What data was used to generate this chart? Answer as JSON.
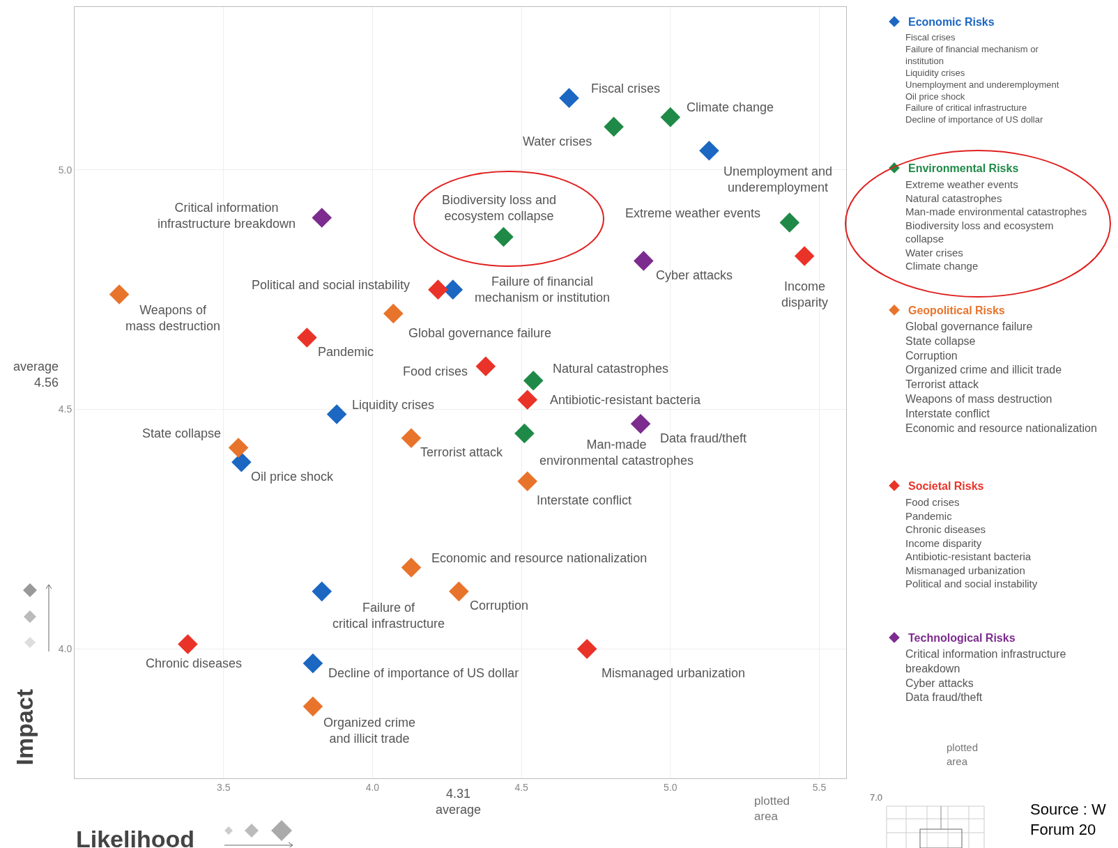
{
  "chart_data": {
    "type": "scatter",
    "xlabel": "Likelihood",
    "ylabel": "Impact",
    "xlim": [
      3.0,
      5.59
    ],
    "ylim": [
      3.73,
      5.34
    ],
    "xticks": [
      3.5,
      {
        "value": 4,
        "label": "4.0"
      },
      4.5,
      {
        "value": 5,
        "label": "5.0"
      },
      5.5
    ],
    "yticks": [
      {
        "value": 4,
        "label": "4.0"
      },
      4.5,
      {
        "value": 5,
        "label": "5.0"
      }
    ],
    "grid": true,
    "marker": "diamond",
    "legend": "right",
    "series": [
      {
        "name": "Economic Risks",
        "color": "#1b67c2",
        "x": [
          4.66,
          5.13,
          4.27,
          3.88,
          3.56,
          3.83,
          3.8
        ],
        "values": [
          5.15,
          5.04,
          4.75,
          4.49,
          4.39,
          4.12,
          3.97
        ]
      },
      {
        "name": "Environmental Risks",
        "color": "#1f8a47",
        "x": [
          5.0,
          4.81,
          5.4,
          4.44,
          4.54,
          4.51
        ],
        "values": [
          5.11,
          5.09,
          4.89,
          4.86,
          4.56,
          4.45
        ]
      },
      {
        "name": "Geopolitical Risks",
        "color": "#e8742c",
        "x": [
          3.15,
          4.07,
          4.13,
          3.55,
          4.52,
          4.13,
          4.29,
          3.8
        ],
        "values": [
          4.74,
          4.7,
          4.44,
          4.42,
          4.35,
          4.17,
          4.12,
          3.88
        ]
      },
      {
        "name": "Societal Risks",
        "color": "#ea3328",
        "x": [
          5.45,
          4.22,
          3.78,
          4.38,
          4.52,
          3.38,
          4.72
        ],
        "values": [
          4.82,
          4.75,
          4.65,
          4.59,
          4.52,
          4.01,
          4.0
        ]
      },
      {
        "name": "Technological Risks",
        "color": "#7c2b8e",
        "x": [
          3.83,
          4.91,
          4.9
        ],
        "values": [
          4.9,
          4.81,
          4.47
        ]
      }
    ],
    "annotations": [
      {
        "text": "Fiscal crises",
        "x": 4.66,
        "y": 5.15
      },
      {
        "text": "Climate change",
        "x": 5.0,
        "y": 5.11
      },
      {
        "text": "Water crises",
        "x": 4.81,
        "y": 5.09
      },
      {
        "text": "Unemployment and\nunderemployment",
        "x": 5.13,
        "y": 5.04
      },
      {
        "text": "Critical information\ninfrastructure breakdown",
        "x": 3.83,
        "y": 4.9
      },
      {
        "text": "Biodiversity loss and\necosystem collapse",
        "x": 4.44,
        "y": 4.86
      },
      {
        "text": "Extreme weather events",
        "x": 5.4,
        "y": 4.89
      },
      {
        "text": "Cyber attacks",
        "x": 4.91,
        "y": 4.81
      },
      {
        "text": "Income\ndisparity",
        "x": 5.45,
        "y": 4.82
      },
      {
        "text": "Political and social instability",
        "x": 4.22,
        "y": 4.75
      },
      {
        "text": "Failure of financial\nmechanism or institution",
        "x": 4.27,
        "y": 4.75
      },
      {
        "text": "Weapons of\nmass destruction",
        "x": 3.15,
        "y": 4.74
      },
      {
        "text": "Global governance failure",
        "x": 4.07,
        "y": 4.7
      },
      {
        "text": "Pandemic",
        "x": 3.78,
        "y": 4.65
      },
      {
        "text": "Food crises",
        "x": 4.38,
        "y": 4.59
      },
      {
        "text": "Natural catastrophes",
        "x": 4.54,
        "y": 4.56
      },
      {
        "text": "Antibiotic-resistant bacteria",
        "x": 4.52,
        "y": 4.52
      },
      {
        "text": "Liquidity crises",
        "x": 3.88,
        "y": 4.49
      },
      {
        "text": "State collapse",
        "x": 3.55,
        "y": 4.42
      },
      {
        "text": "Data fraud/theft",
        "x": 4.9,
        "y": 4.47
      },
      {
        "text": "Terrorist attack",
        "x": 4.13,
        "y": 4.44
      },
      {
        "text": "Man-made\nenvironmental catastrophes",
        "x": 4.51,
        "y": 4.45
      },
      {
        "text": "Oil price shock",
        "x": 3.56,
        "y": 4.39
      },
      {
        "text": "Interstate conflict",
        "x": 4.52,
        "y": 4.35
      },
      {
        "text": "Economic and resource nationalization",
        "x": 4.13,
        "y": 4.17
      },
      {
        "text": "Failure of\ncritical infrastructure",
        "x": 3.83,
        "y": 4.12
      },
      {
        "text": "Corruption",
        "x": 4.29,
        "y": 4.12
      },
      {
        "text": "Chronic diseases",
        "x": 3.38,
        "y": 4.01
      },
      {
        "text": "Decline of importance of US dollar",
        "x": 3.8,
        "y": 3.97
      },
      {
        "text": "Mismanaged urbanization",
        "x": 4.72,
        "y": 4.0
      },
      {
        "text": "Organized crime\nand illicit trade",
        "x": 3.8,
        "y": 3.88
      },
      "Fiscal crises\nFailure of financial mechanism or\ninstitution\nLiquidity crises\nUnemployment and underemployment\nOil price shock\nFailure of critical infrastructure\nDecline of importance of US dollar",
      "Extreme weather events\nNatural catastrophes\nMan-made environmental catastrophes\nBiodiversity loss and ecosystem\ncollapse\nWater crises\nClimate change",
      "Global governance failure\nState collapse\nCorruption\nOrganized crime and illicit trade\nTerrorist attack\nWeapons of mass destruction\nInterstate conflict\nEconomic and resource nationalization",
      "Food crises\nPandemic\nChronic diseases\nIncome disparity\nAntibiotic-resistant bacteria\nMismanaged urbanization\nPolitical and social instability",
      "Critical information infrastructure\nbreakdown\nCyber attacks\nData fraud/theft",
      "plotted\narea",
      "plotted\narea",
      "7.0",
      "Source : W\nForum 20",
      "average\n4.56",
      "4.31\naverage"
    ]
  }
}
